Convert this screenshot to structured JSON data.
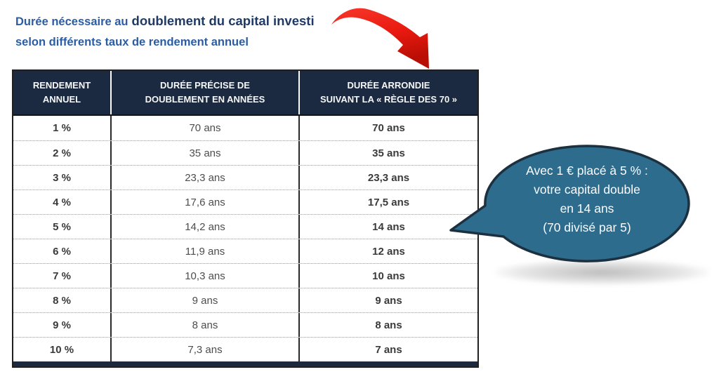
{
  "title": {
    "line1_regular": "Durée nécessaire au",
    "line1_emphasis": "doublement du capital investi",
    "line2": "selon différents taux de rendement annuel"
  },
  "table": {
    "headers": [
      "RENDEMENT\nANNUEL",
      "DURÉE PRÉCISE DE\nDOUBLEMENT EN ANNÉES",
      "DURÉE ARRONDIE\nSUIVANT LA « RÈGLE DES 70 »"
    ],
    "rows": [
      {
        "rate": "1 %",
        "precise": "70 ans",
        "rounded": "70 ans"
      },
      {
        "rate": "2 %",
        "precise": "35 ans",
        "rounded": "35 ans"
      },
      {
        "rate": "3 %",
        "precise": "23,3 ans",
        "rounded": "23,3 ans"
      },
      {
        "rate": "4 %",
        "precise": "17,6 ans",
        "rounded": "17,5 ans"
      },
      {
        "rate": "5 %",
        "precise": "14,2 ans",
        "rounded": "14 ans"
      },
      {
        "rate": "6 %",
        "precise": "11,9 ans",
        "rounded": "12 ans"
      },
      {
        "rate": "7 %",
        "precise": "10,3 ans",
        "rounded": "10 ans"
      },
      {
        "rate": "8 %",
        "precise": "9 ans",
        "rounded": "9 ans"
      },
      {
        "rate": "9 %",
        "precise": "8 ans",
        "rounded": "8 ans"
      },
      {
        "rate": "10 %",
        "precise": "7,3 ans",
        "rounded": "7 ans"
      }
    ]
  },
  "callout": {
    "lines": [
      "Avec 1 € placé à 5 % :",
      "votre capital double",
      "en 14 ans",
      "(70 divisé par 5)"
    ]
  },
  "colors": {
    "title_blue": "#2a5da5",
    "title_navy": "#203a66",
    "header_bg": "#1b2a40",
    "arrow_red": "#e8190f",
    "bubble_fill": "#2d6c8d",
    "bubble_border": "#1c3040",
    "cell_text_bold": "#3a3a3a",
    "cell_text_regular": "#4d4d4d"
  },
  "chart_data": {
    "type": "table",
    "title": "Durée nécessaire au doublement du capital investi selon différents taux de rendement annuel",
    "columns": [
      "RENDEMENT ANNUEL",
      "DURÉE PRÉCISE DE DOUBLEMENT EN ANNÉES",
      "DURÉE ARRONDIE SUIVANT LA « RÈGLE DES 70 »"
    ],
    "rows": [
      [
        "1 %",
        "70 ans",
        "70 ans"
      ],
      [
        "2 %",
        "35 ans",
        "35 ans"
      ],
      [
        "3 %",
        "23,3 ans",
        "23,3 ans"
      ],
      [
        "4 %",
        "17,6 ans",
        "17,5 ans"
      ],
      [
        "5 %",
        "14,2 ans",
        "14 ans"
      ],
      [
        "6 %",
        "11,9 ans",
        "12 ans"
      ],
      [
        "7 %",
        "10,3 ans",
        "10 ans"
      ],
      [
        "8 %",
        "9 ans",
        "9 ans"
      ],
      [
        "9 %",
        "8 ans",
        "8 ans"
      ],
      [
        "10 %",
        "7,3 ans",
        "7 ans"
      ]
    ],
    "annotation": "Avec 1 € placé à 5 % : votre capital double en 14 ans (70 divisé par 5)"
  }
}
